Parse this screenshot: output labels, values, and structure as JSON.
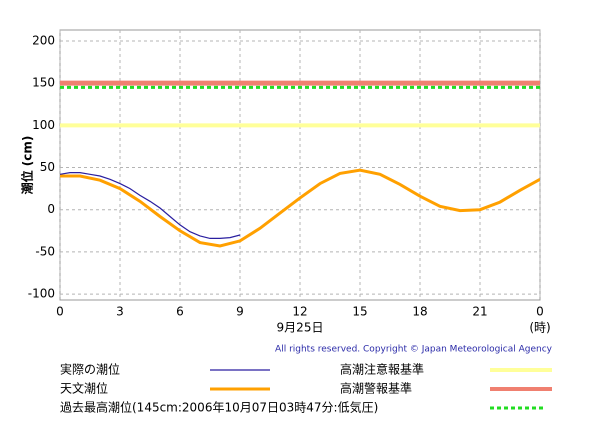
{
  "chart_data": {
    "type": "line",
    "y_label": "潮位 (cm)",
    "x_label": "9月25日",
    "x_unit": "(時)",
    "copyright": "All rights reserved. Copyright © Japan Meteorological Agency",
    "xlim": [
      0,
      24
    ],
    "xticks": [
      0,
      3,
      6,
      9,
      12,
      15,
      18,
      21,
      {
        "value": 24,
        "label": "0"
      }
    ],
    "ylim": [
      -107,
      213
    ],
    "yticks": [
      -100,
      -50,
      0,
      50,
      100,
      150,
      200
    ],
    "grid": true,
    "series": [
      {
        "name": "実際の潮位",
        "color": "#2a1fa0",
        "x": [
          0,
          0.5,
          1,
          1.5,
          2,
          2.5,
          3,
          3.5,
          4,
          4.5,
          5,
          5.5,
          6,
          6.5,
          7,
          7.5,
          8,
          8.5,
          9
        ],
        "values": [
          42,
          44,
          44,
          42,
          40,
          36,
          31,
          25,
          17,
          10,
          2,
          -8,
          -18,
          -26,
          -31,
          -34,
          -34,
          -33,
          -30
        ]
      },
      {
        "name": "天文潮位",
        "color": "#ffa000",
        "x": [
          0,
          1,
          2,
          3,
          4,
          5,
          6,
          7,
          8,
          9,
          10,
          11,
          12,
          13,
          14,
          15,
          16,
          17,
          18,
          19,
          20,
          21,
          22,
          23,
          24
        ],
        "values": [
          40,
          40,
          35,
          25,
          10,
          -8,
          -25,
          -39,
          -43,
          -37,
          -22,
          -4,
          14,
          31,
          43,
          47,
          42,
          30,
          16,
          4,
          -1,
          0,
          9,
          23,
          36
        ]
      }
    ],
    "reference_lines": [
      {
        "name": "高潮注意報基準",
        "value": 100,
        "color": "#ffff99",
        "dashed": false
      },
      {
        "name": "高潮警報基準",
        "value": 150,
        "color": "#f08070",
        "dashed": false
      },
      {
        "name": "過去最高潮位(145cm:2006年10月07日03時47分:低気圧)",
        "value": 145,
        "color": "#22dd22",
        "dashed": true
      }
    ]
  }
}
